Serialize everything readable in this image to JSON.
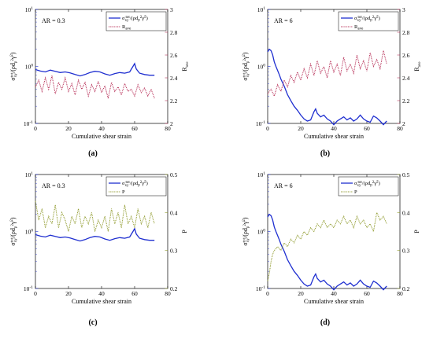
{
  "xlabel": "Cumulative shear strain",
  "left_ylabel_parts": [
    "σ",
    "xy",
    "tot",
    "/(ρd",
    "p",
    "2",
    "γ̇",
    "2",
    ")"
  ],
  "x_ticks": [
    "0",
    "20",
    "40",
    "60",
    "80"
  ],
  "left_ticks": [
    "10",
    "10",
    "10"
  ],
  "left_exps": [
    "1",
    "0",
    "-1"
  ],
  "colors": {
    "sigma": "#1f2fd0",
    "rave": "#b8325a",
    "p": "#8f9a2c"
  },
  "chart_data": [
    {
      "type": "line",
      "panel_label": "(a)",
      "annotation": "AR = 0.3",
      "xlim": [
        0,
        80
      ],
      "left_axis": {
        "scale": "log",
        "ylim": [
          0.1,
          10
        ]
      },
      "right_axis": {
        "label": "R",
        "label_sub": "ave",
        "ylim": [
          2,
          3
        ],
        "ticks": [
          "2",
          "2.2",
          "2.4",
          "2.6",
          "2.8",
          "3"
        ]
      },
      "legend": {
        "position": "top-right"
      },
      "series": [
        {
          "axis": "left",
          "style": "solid",
          "color_key": "sigma",
          "x": [
            0,
            3,
            6,
            9,
            12,
            15,
            18,
            21,
            24,
            27,
            30,
            33,
            36,
            39,
            42,
            45,
            48,
            51,
            54,
            57,
            59,
            60,
            61,
            63,
            66,
            69,
            72
          ],
          "y": [
            0.88,
            0.83,
            0.8,
            0.86,
            0.82,
            0.78,
            0.8,
            0.77,
            0.72,
            0.68,
            0.72,
            0.78,
            0.82,
            0.8,
            0.74,
            0.7,
            0.75,
            0.78,
            0.76,
            0.8,
            1.0,
            1.12,
            0.9,
            0.76,
            0.72,
            0.7,
            0.7
          ]
        },
        {
          "axis": "right",
          "style": "dotted",
          "color_key": "rave",
          "x": [
            0,
            2,
            4,
            6,
            8,
            10,
            12,
            14,
            16,
            18,
            20,
            22,
            24,
            26,
            28,
            30,
            32,
            34,
            36,
            38,
            40,
            42,
            44,
            46,
            48,
            50,
            52,
            54,
            56,
            58,
            60,
            62,
            64,
            66,
            68,
            70,
            72
          ],
          "y": [
            2.32,
            2.38,
            2.28,
            2.4,
            2.3,
            2.42,
            2.26,
            2.36,
            2.3,
            2.4,
            2.28,
            2.35,
            2.25,
            2.38,
            2.3,
            2.36,
            2.24,
            2.34,
            2.28,
            2.37,
            2.27,
            2.33,
            2.22,
            2.36,
            2.28,
            2.32,
            2.25,
            2.35,
            2.28,
            2.3,
            2.24,
            2.34,
            2.27,
            2.31,
            2.24,
            2.3,
            2.22
          ]
        }
      ]
    },
    {
      "type": "line",
      "panel_label": "(b)",
      "annotation": "AR = 6",
      "xlim": [
        0,
        80
      ],
      "left_axis": {
        "scale": "log",
        "ylim": [
          0.1,
          10
        ]
      },
      "right_axis": {
        "label": "R",
        "label_sub": "ave",
        "ylim": [
          2,
          3
        ],
        "ticks": [
          "2",
          "2.2",
          "2.4",
          "2.6",
          "2.8",
          "3"
        ]
      },
      "legend": {
        "position": "top-right"
      },
      "series": [
        {
          "axis": "left",
          "style": "solid",
          "color_key": "sigma",
          "x": [
            0,
            1,
            2,
            3,
            4,
            5,
            6,
            7,
            8,
            10,
            12,
            14,
            16,
            18,
            20,
            22,
            24,
            26,
            28,
            29,
            30,
            32,
            34,
            36,
            38,
            40,
            42,
            44,
            46,
            48,
            50,
            52,
            54,
            56,
            58,
            60,
            62,
            64,
            66,
            68,
            70,
            72
          ],
          "y": [
            1.8,
            2.0,
            1.9,
            1.6,
            1.2,
            1.0,
            0.85,
            0.72,
            0.6,
            0.45,
            0.32,
            0.25,
            0.2,
            0.17,
            0.14,
            0.12,
            0.11,
            0.115,
            0.16,
            0.18,
            0.15,
            0.13,
            0.14,
            0.12,
            0.11,
            0.095,
            0.11,
            0.12,
            0.13,
            0.115,
            0.125,
            0.11,
            0.12,
            0.14,
            0.12,
            0.11,
            0.105,
            0.135,
            0.125,
            0.11,
            0.095,
            0.11
          ]
        },
        {
          "axis": "right",
          "style": "dotted",
          "color_key": "rave",
          "x": [
            0,
            2,
            4,
            6,
            8,
            10,
            12,
            14,
            16,
            18,
            20,
            22,
            24,
            26,
            28,
            30,
            32,
            34,
            36,
            38,
            40,
            42,
            44,
            46,
            48,
            50,
            52,
            54,
            56,
            58,
            60,
            62,
            64,
            66,
            68,
            70,
            72
          ],
          "y": [
            2.26,
            2.3,
            2.24,
            2.34,
            2.28,
            2.38,
            2.32,
            2.42,
            2.36,
            2.45,
            2.38,
            2.48,
            2.4,
            2.52,
            2.42,
            2.55,
            2.44,
            2.5,
            2.4,
            2.55,
            2.45,
            2.52,
            2.42,
            2.58,
            2.46,
            2.52,
            2.44,
            2.6,
            2.48,
            2.55,
            2.46,
            2.62,
            2.5,
            2.56,
            2.48,
            2.64,
            2.52
          ]
        }
      ]
    },
    {
      "type": "line",
      "panel_label": "(c)",
      "annotation": "AR = 0.3",
      "xlim": [
        0,
        80
      ],
      "left_axis": {
        "scale": "log",
        "ylim": [
          0.1,
          10
        ]
      },
      "right_axis": {
        "label": "P",
        "label_sub": "",
        "ylim": [
          0.2,
          0.5
        ],
        "ticks": [
          "0.2",
          "0.3",
          "0.4",
          "0.5"
        ]
      },
      "legend": {
        "position": "top-right"
      },
      "series": [
        {
          "axis": "left",
          "style": "solid",
          "color_key": "sigma",
          "x": [
            0,
            3,
            6,
            9,
            12,
            15,
            18,
            21,
            24,
            27,
            30,
            33,
            36,
            39,
            42,
            45,
            48,
            51,
            54,
            57,
            59,
            60,
            61,
            63,
            66,
            69,
            72
          ],
          "y": [
            0.88,
            0.83,
            0.8,
            0.86,
            0.82,
            0.78,
            0.8,
            0.77,
            0.72,
            0.68,
            0.72,
            0.78,
            0.82,
            0.8,
            0.74,
            0.7,
            0.75,
            0.78,
            0.76,
            0.8,
            1.0,
            1.12,
            0.9,
            0.76,
            0.72,
            0.7,
            0.7
          ]
        },
        {
          "axis": "right",
          "style": "dotted",
          "color_key": "p",
          "x": [
            0,
            2,
            4,
            6,
            8,
            10,
            12,
            14,
            16,
            18,
            20,
            22,
            24,
            26,
            28,
            30,
            32,
            34,
            36,
            38,
            40,
            42,
            44,
            46,
            48,
            50,
            52,
            54,
            56,
            58,
            60,
            62,
            64,
            66,
            68,
            70,
            72
          ],
          "y": [
            0.43,
            0.38,
            0.41,
            0.36,
            0.39,
            0.37,
            0.42,
            0.36,
            0.4,
            0.38,
            0.35,
            0.39,
            0.37,
            0.41,
            0.36,
            0.39,
            0.37,
            0.4,
            0.35,
            0.38,
            0.36,
            0.39,
            0.35,
            0.41,
            0.37,
            0.4,
            0.36,
            0.42,
            0.37,
            0.39,
            0.36,
            0.41,
            0.37,
            0.39,
            0.36,
            0.4,
            0.37
          ]
        }
      ]
    },
    {
      "type": "line",
      "panel_label": "(d)",
      "annotation": "AR = 6",
      "xlim": [
        0,
        80
      ],
      "left_axis": {
        "scale": "log",
        "ylim": [
          0.1,
          10
        ]
      },
      "right_axis": {
        "label": "P",
        "label_sub": "",
        "ylim": [
          0.2,
          0.5
        ],
        "ticks": [
          "0.2",
          "0.3",
          "0.4",
          "0.5"
        ]
      },
      "legend": {
        "position": "top-right"
      },
      "series": [
        {
          "axis": "left",
          "style": "solid",
          "color_key": "sigma",
          "x": [
            0,
            1,
            2,
            3,
            4,
            5,
            6,
            7,
            8,
            10,
            12,
            14,
            16,
            18,
            20,
            22,
            24,
            26,
            28,
            29,
            30,
            32,
            34,
            36,
            38,
            40,
            42,
            44,
            46,
            48,
            50,
            52,
            54,
            56,
            58,
            60,
            62,
            64,
            66,
            68,
            70,
            72
          ],
          "y": [
            1.8,
            2.0,
            1.9,
            1.6,
            1.2,
            1.0,
            0.85,
            0.72,
            0.6,
            0.45,
            0.32,
            0.25,
            0.2,
            0.17,
            0.14,
            0.12,
            0.11,
            0.115,
            0.16,
            0.18,
            0.15,
            0.13,
            0.14,
            0.12,
            0.11,
            0.095,
            0.11,
            0.12,
            0.13,
            0.115,
            0.125,
            0.11,
            0.12,
            0.14,
            0.12,
            0.11,
            0.105,
            0.135,
            0.125,
            0.11,
            0.095,
            0.11
          ]
        },
        {
          "axis": "right",
          "style": "dotted",
          "color_key": "p",
          "x": [
            0,
            1,
            2,
            3,
            4,
            6,
            8,
            10,
            12,
            14,
            16,
            18,
            20,
            22,
            24,
            26,
            28,
            30,
            32,
            34,
            36,
            38,
            40,
            42,
            44,
            46,
            48,
            50,
            52,
            54,
            56,
            58,
            60,
            62,
            64,
            66,
            68,
            70,
            72
          ],
          "y": [
            0.22,
            0.24,
            0.27,
            0.29,
            0.3,
            0.31,
            0.3,
            0.32,
            0.31,
            0.33,
            0.32,
            0.34,
            0.33,
            0.35,
            0.34,
            0.36,
            0.35,
            0.37,
            0.36,
            0.38,
            0.36,
            0.37,
            0.36,
            0.38,
            0.37,
            0.39,
            0.37,
            0.38,
            0.36,
            0.39,
            0.37,
            0.38,
            0.36,
            0.37,
            0.35,
            0.4,
            0.38,
            0.39,
            0.37
          ]
        }
      ]
    }
  ]
}
